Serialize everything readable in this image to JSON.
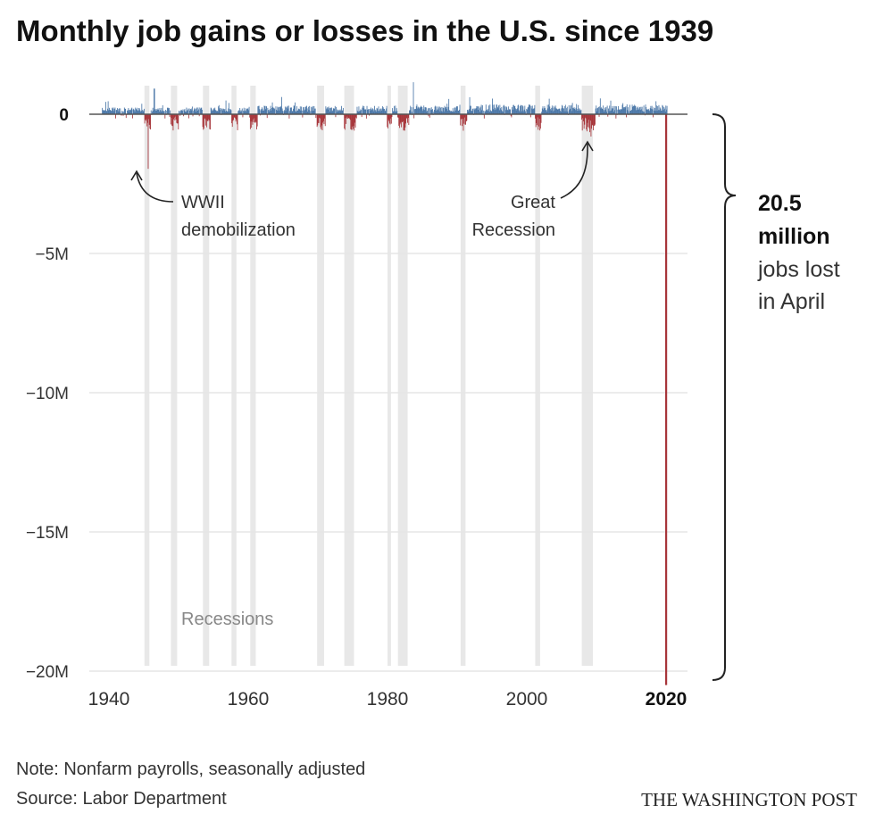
{
  "title": "Monthly job gains or losses in the U.S. since 1939",
  "chart_data": {
    "type": "bar",
    "title": "Monthly job gains or losses in the U.S. since 1939",
    "xlabel": "",
    "ylabel": "",
    "x_range": [
      1939,
      2020.4
    ],
    "ylim": [
      -20500000,
      1300000
    ],
    "y_ticks": [
      {
        "value": 0,
        "label": "0"
      },
      {
        "value": -5000000,
        "label": "−5M"
      },
      {
        "value": -10000000,
        "label": "−10M"
      },
      {
        "value": -15000000,
        "label": "−15M"
      },
      {
        "value": -20000000,
        "label": "−20M"
      }
    ],
    "x_ticks": [
      {
        "value": 1940,
        "label": "1940",
        "bold": false
      },
      {
        "value": 1960,
        "label": "1960",
        "bold": false
      },
      {
        "value": 1980,
        "label": "1980",
        "bold": false
      },
      {
        "value": 2000,
        "label": "2000",
        "bold": false
      },
      {
        "value": 2020,
        "label": "2020",
        "bold": true
      }
    ],
    "recessions": [
      [
        1945.1,
        1945.8
      ],
      [
        1948.9,
        1949.8
      ],
      [
        1953.5,
        1954.4
      ],
      [
        1957.6,
        1958.3
      ],
      [
        1960.3,
        1961.1
      ],
      [
        1969.9,
        1970.9
      ],
      [
        1973.8,
        1975.2
      ],
      [
        1980.0,
        1980.5
      ],
      [
        1981.5,
        1982.9
      ],
      [
        1990.5,
        1991.2
      ],
      [
        2001.2,
        2001.9
      ],
      [
        2007.9,
        2009.5
      ]
    ],
    "key_values": [
      {
        "date": "1945-09",
        "value": -1960000,
        "label": "WWII demobilization"
      },
      {
        "date": "2009-03",
        "value": -800000,
        "label": "Great Recession"
      },
      {
        "date": "2020-04",
        "value": -20500000,
        "label": "April 2020"
      }
    ],
    "series_note": "Monthly change in nonfarm payrolls; positive months shown in blue, negative months in red",
    "colors": {
      "gain": "#4c78a8",
      "loss": "#a7353a",
      "recession": "#e8e8e8",
      "gridline": "#e6e6e6",
      "zero_line": "#555555"
    },
    "annotations": {
      "wwii": [
        "WWII",
        "demobilization"
      ],
      "great_recession": [
        "Great",
        "Recession"
      ],
      "recessions_label": "Recessions"
    }
  },
  "callout": {
    "number_lines": [
      "20.5",
      "million"
    ],
    "text_lines": [
      "jobs lost",
      "in April"
    ]
  },
  "footer": {
    "note": "Note: Nonfarm payrolls, seasonally adjusted",
    "source": "Source: Labor Department",
    "brand": "THE WASHINGTON POST"
  }
}
